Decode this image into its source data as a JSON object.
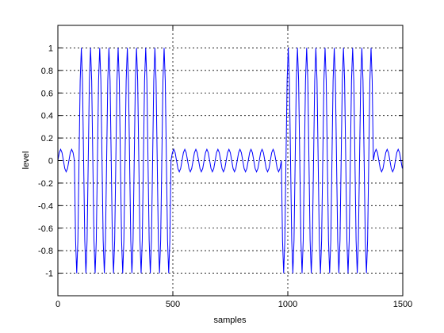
{
  "chart_data": {
    "type": "line",
    "xlabel": "samples",
    "ylabel": "level",
    "xlim": [
      0,
      1500
    ],
    "xticks": [
      0,
      500,
      1000,
      1500
    ],
    "ylim": [
      -1.2,
      1.2
    ],
    "yticks": [
      -1,
      -0.8,
      -0.6,
      -0.4,
      -0.2,
      0,
      0.2,
      0.4,
      0.6,
      0.8,
      1
    ],
    "grid": true,
    "x": [
      0,
      6,
      12,
      18,
      24,
      30,
      36,
      42,
      48,
      54,
      60,
      66,
      72,
      77,
      82,
      87,
      92,
      97,
      102,
      107,
      112,
      117,
      122,
      127,
      132,
      137,
      142,
      147,
      152,
      157,
      162,
      167,
      172,
      177,
      182,
      187,
      192,
      197,
      202,
      207,
      212,
      217,
      222,
      227,
      232,
      237,
      242,
      247,
      252,
      257,
      262,
      267,
      272,
      277,
      282,
      287,
      292,
      297,
      302,
      307,
      312,
      317,
      322,
      327,
      332,
      337,
      342,
      347,
      352,
      357,
      362,
      367,
      372,
      377,
      382,
      387,
      392,
      397,
      402,
      407,
      412,
      417,
      422,
      427,
      432,
      437,
      442,
      447,
      452,
      457,
      462,
      467,
      472,
      477,
      482,
      487,
      492,
      498,
      504,
      510,
      516,
      522,
      528,
      534,
      540,
      546,
      552,
      558,
      564,
      570,
      576,
      582,
      588,
      594,
      600,
      606,
      612,
      618,
      624,
      630,
      636,
      642,
      648,
      654,
      660,
      666,
      672,
      678,
      684,
      690,
      696,
      702,
      708,
      714,
      720,
      726,
      732,
      738,
      744,
      750,
      756,
      762,
      768,
      774,
      780,
      786,
      792,
      798,
      804,
      810,
      816,
      822,
      828,
      834,
      840,
      846,
      852,
      858,
      864,
      870,
      876,
      882,
      888,
      894,
      900,
      906,
      912,
      918,
      924,
      930,
      936,
      942,
      948,
      954,
      960,
      966,
      972,
      977,
      982,
      987,
      992,
      997,
      1002,
      1007,
      1012,
      1017,
      1022,
      1027,
      1032,
      1037,
      1042,
      1047,
      1052,
      1057,
      1062,
      1067,
      1072,
      1077,
      1082,
      1087,
      1092,
      1097,
      1102,
      1107,
      1112,
      1117,
      1122,
      1127,
      1132,
      1137,
      1142,
      1147,
      1152,
      1157,
      1162,
      1167,
      1172,
      1177,
      1182,
      1187,
      1192,
      1197,
      1202,
      1207,
      1212,
      1217,
      1222,
      1227,
      1232,
      1237,
      1242,
      1247,
      1252,
      1257,
      1262,
      1267,
      1272,
      1277,
      1282,
      1287,
      1292,
      1297,
      1302,
      1307,
      1312,
      1317,
      1322,
      1327,
      1332,
      1337,
      1342,
      1347,
      1352,
      1357,
      1362,
      1367,
      1372,
      1378,
      1384,
      1390,
      1396,
      1402,
      1408,
      1414,
      1420,
      1426,
      1432,
      1438,
      1444,
      1450,
      1456,
      1462,
      1468,
      1474,
      1480,
      1486,
      1492,
      1498
    ],
    "series": [
      {
        "color": "#0000ff",
        "values": [
          0,
          0.07,
          0.1,
          0.07,
          0,
          -0.07,
          -0.1,
          -0.07,
          0,
          0.07,
          0.1,
          0.07,
          0,
          -0.71,
          -1,
          -0.71,
          0,
          0.71,
          1,
          0.71,
          0,
          -0.71,
          -1,
          -0.71,
          0,
          0.71,
          1,
          0.71,
          0,
          -0.71,
          -1,
          -0.71,
          0,
          0.71,
          1,
          0.71,
          0,
          -0.71,
          -1,
          -0.71,
          0,
          0.71,
          1,
          0.71,
          0,
          -0.71,
          -1,
          -0.71,
          0,
          0.71,
          1,
          0.71,
          0,
          -0.71,
          -1,
          -0.71,
          0,
          0.71,
          1,
          0.71,
          0,
          -0.71,
          -1,
          -0.71,
          0,
          0.71,
          1,
          0.71,
          0,
          -0.71,
          -1,
          -0.71,
          0,
          0.71,
          1,
          0.71,
          0,
          -0.71,
          -1,
          -0.71,
          0,
          0.71,
          1,
          0.71,
          0,
          -0.71,
          -1,
          -0.71,
          0,
          0.71,
          1,
          0.71,
          0,
          -0.71,
          -1,
          -0.71,
          0,
          0.07,
          0.1,
          0.07,
          0,
          -0.07,
          -0.1,
          -0.07,
          0,
          0.07,
          0.1,
          0.07,
          0,
          -0.07,
          -0.1,
          -0.07,
          0,
          0.07,
          0.1,
          0.07,
          0,
          -0.07,
          -0.1,
          -0.07,
          0,
          0.07,
          0.1,
          0.07,
          0,
          -0.07,
          -0.1,
          -0.07,
          0,
          0.07,
          0.1,
          0.07,
          0,
          -0.07,
          -0.1,
          -0.07,
          0,
          0.07,
          0.1,
          0.07,
          0,
          -0.07,
          -0.1,
          -0.07,
          0,
          0.07,
          0.1,
          0.07,
          0,
          -0.07,
          -0.1,
          -0.07,
          0,
          0.07,
          0.1,
          0.07,
          0,
          -0.07,
          -0.1,
          -0.07,
          0,
          0.07,
          0.1,
          0.07,
          0,
          -0.07,
          -0.1,
          -0.07,
          0,
          0.07,
          0.1,
          0.07,
          0,
          -0.07,
          -0.1,
          -0.07,
          0,
          -0.71,
          -1,
          -0.71,
          0,
          0.71,
          1,
          0.71,
          0,
          -0.71,
          -1,
          -0.71,
          0,
          0.71,
          1,
          0.71,
          0,
          -0.71,
          -1,
          -0.71,
          0,
          0.71,
          1,
          0.71,
          0,
          -0.71,
          -1,
          -0.71,
          0,
          0.71,
          1,
          0.71,
          0,
          -0.71,
          -1,
          -0.71,
          0,
          0.71,
          1,
          0.71,
          0,
          -0.71,
          -1,
          -0.71,
          0,
          0.71,
          1,
          0.71,
          0,
          -0.71,
          -1,
          -0.71,
          0,
          0.71,
          1,
          0.71,
          0,
          -0.71,
          -1,
          -0.71,
          0,
          0.71,
          1,
          0.71,
          0,
          -0.71,
          -1,
          -0.71,
          0,
          0.71,
          1,
          0.71,
          0,
          -0.71,
          -1,
          -0.71,
          0,
          0.71,
          1,
          0.71,
          0,
          0.07,
          0.1,
          0.07,
          0,
          -0.07,
          -0.1,
          -0.07,
          0,
          0.07,
          0.1,
          0.07,
          0,
          -0.07,
          -0.1,
          -0.07,
          0,
          0.07,
          0.1,
          0.07,
          0,
          -0.07
        ]
      }
    ]
  }
}
